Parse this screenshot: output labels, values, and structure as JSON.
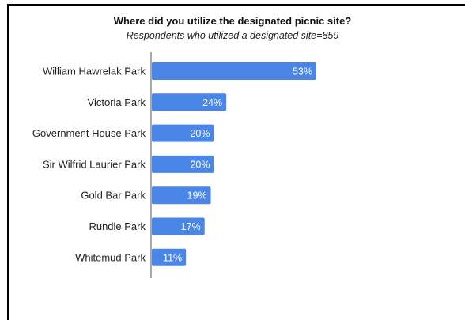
{
  "chart_data": {
    "type": "bar",
    "orientation": "horizontal",
    "title": "Where did you utilize the designated picnic site?",
    "subtitle": "Respondents who utilized a designated site=859",
    "categories": [
      "William Hawrelak Park",
      "Victoria Park",
      "Government House Park",
      "Sir Wilfrid Laurier Park",
      "Gold Bar Park",
      "Rundle Park",
      "Whitemud Park"
    ],
    "values": [
      53,
      24,
      20,
      20,
      19,
      17,
      11
    ],
    "value_labels": [
      "53%",
      "24%",
      "20%",
      "20%",
      "19%",
      "17%",
      "11%"
    ],
    "unit": "%",
    "xlim": [
      0,
      100
    ],
    "grid": false,
    "legend": "none",
    "colors": {
      "bar": "#4A86E8",
      "value_label": "#FFFFFF",
      "axis": "#555555"
    }
  }
}
